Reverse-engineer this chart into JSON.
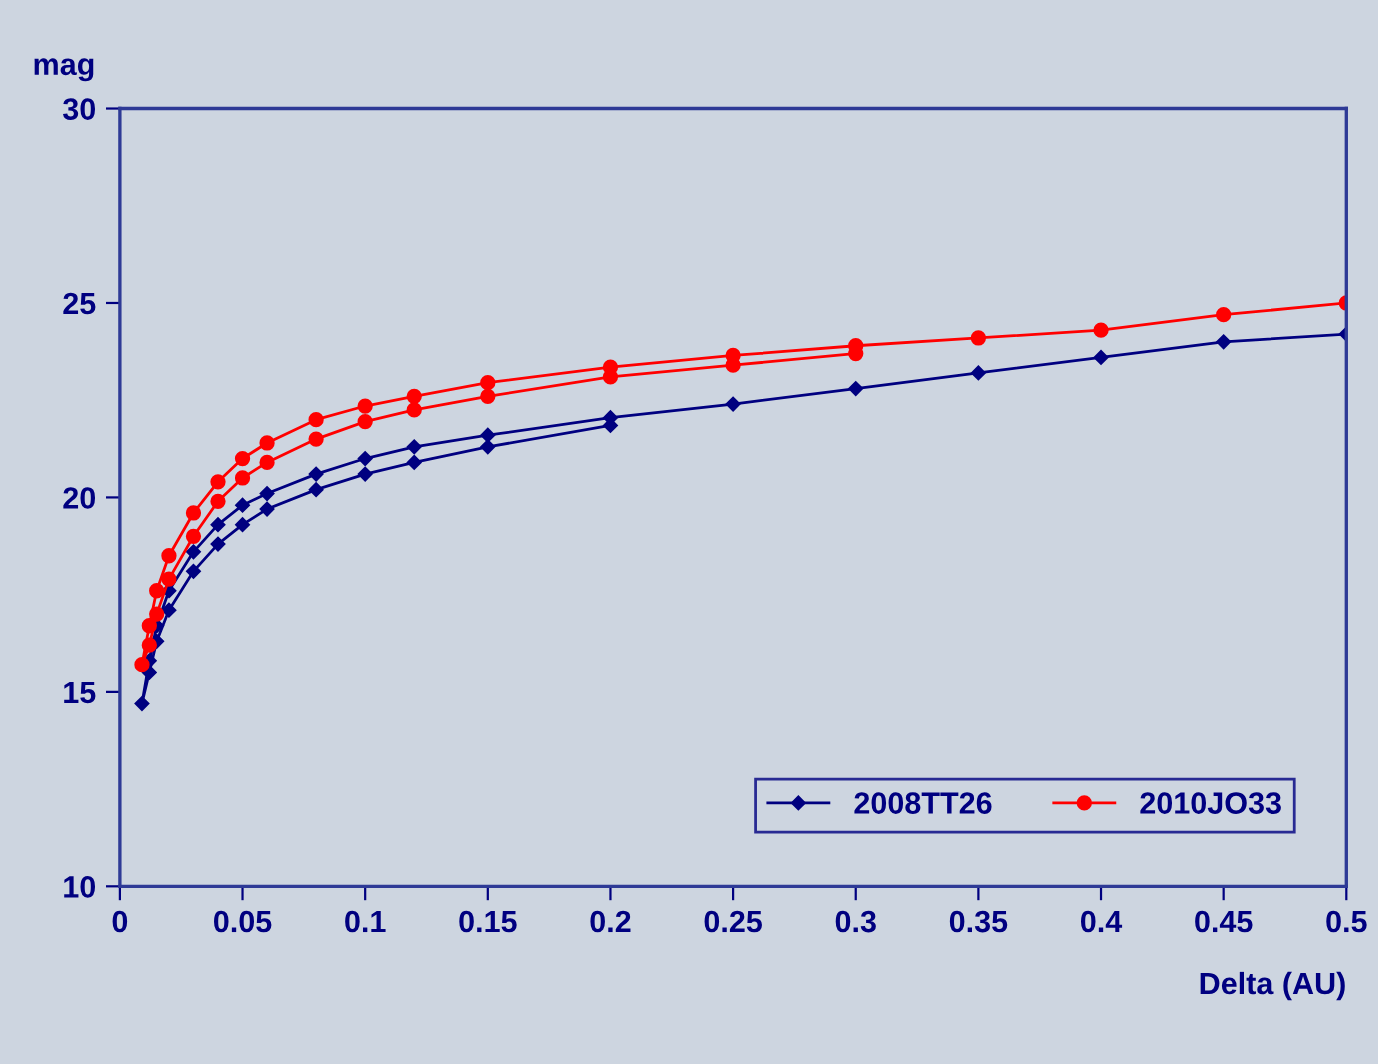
{
  "chart_data": {
    "type": "line",
    "xlabel": "Delta (AU)",
    "ylabel": "mag",
    "xlim": [
      0,
      0.5
    ],
    "ylim": [
      10,
      30
    ],
    "xticks": [
      {
        "value": 0,
        "label": "0"
      },
      0.05,
      0.1,
      0.15,
      0.2,
      0.25,
      0.3,
      0.35,
      0.4,
      0.45,
      0.5
    ],
    "yticks": [
      10,
      15,
      20,
      25,
      30
    ],
    "grid": false,
    "legend": "bottom right",
    "series": [
      {
        "name": "2008TT26",
        "color": "#000080",
        "marker": "diamond",
        "x": [
          0.5,
          0.45,
          0.4,
          0.35,
          0.3,
          0.25,
          0.2,
          0.15,
          0.12,
          0.1,
          0.08,
          0.06,
          0.05,
          0.04,
          0.03,
          0.02,
          0.015,
          0.012,
          0.009,
          0.012,
          0.015,
          0.02,
          0.03,
          0.04,
          0.05,
          0.06,
          0.08,
          0.1,
          0.12,
          0.15,
          0.2
        ],
        "values": [
          24.2,
          24.0,
          23.6,
          23.2,
          22.8,
          22.4,
          22.05,
          21.6,
          21.3,
          21.0,
          20.6,
          20.1,
          19.8,
          19.3,
          18.6,
          17.6,
          16.7,
          15.8,
          14.7,
          15.5,
          16.3,
          17.1,
          18.1,
          18.8,
          19.3,
          19.7,
          20.2,
          20.6,
          20.9,
          21.3,
          21.85
        ]
      },
      {
        "name": "2010JO33",
        "color": "#ff0000",
        "marker": "circle",
        "x": [
          0.5,
          0.45,
          0.4,
          0.35,
          0.3,
          0.25,
          0.2,
          0.15,
          0.12,
          0.1,
          0.08,
          0.06,
          0.05,
          0.04,
          0.03,
          0.02,
          0.015,
          0.012,
          0.009,
          0.012,
          0.015,
          0.02,
          0.03,
          0.04,
          0.05,
          0.06,
          0.08,
          0.1,
          0.12,
          0.15,
          0.2,
          0.25,
          0.3
        ],
        "values": [
          25.0,
          24.7,
          24.3,
          24.1,
          23.9,
          23.65,
          23.35,
          22.95,
          22.6,
          22.35,
          22.0,
          21.4,
          21.0,
          20.4,
          19.6,
          18.5,
          17.6,
          16.7,
          15.7,
          16.2,
          17.0,
          17.9,
          19.0,
          19.9,
          20.5,
          20.9,
          21.5,
          21.95,
          22.25,
          22.6,
          23.1,
          23.4,
          23.7
        ]
      }
    ]
  }
}
